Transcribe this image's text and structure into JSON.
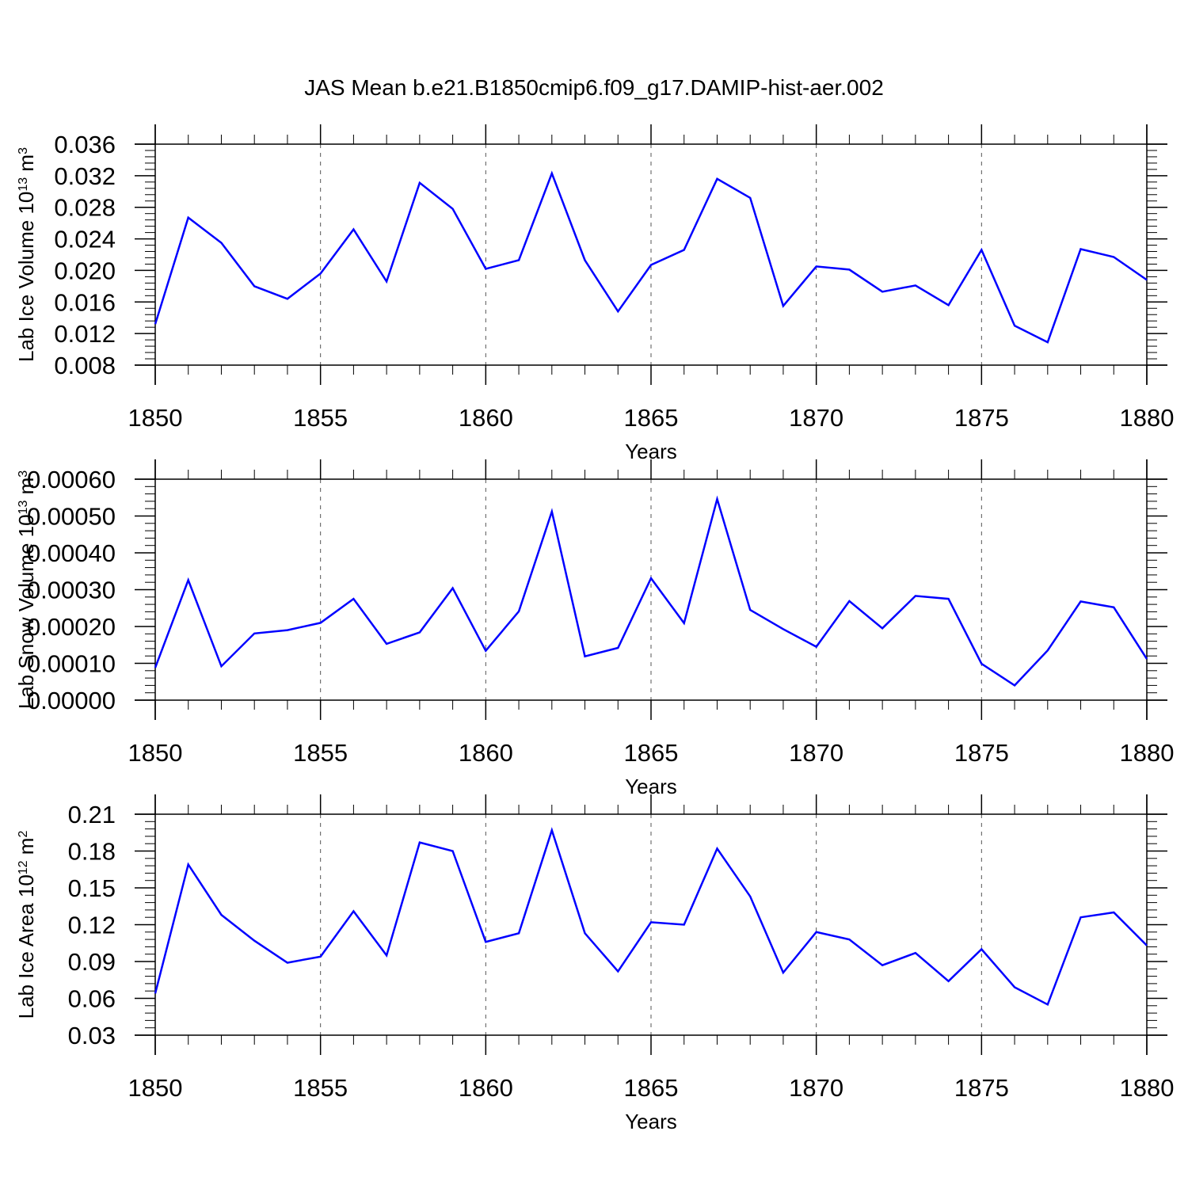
{
  "title": "JAS Mean b.e21.B1850cmip6.f09_g17.DAMIP-hist-aer.002",
  "colors": {
    "line": "#0000ff",
    "axis": "#000000",
    "grid": "#555555"
  },
  "chart_data": [
    {
      "type": "line",
      "ylabel": {
        "main": "Lab Ice Volume 10",
        "exp": "13",
        "unit": " m",
        "unit_exp": "3"
      },
      "xlabel": "Years",
      "xlim": [
        1850,
        1880
      ],
      "ylim": [
        0.008,
        0.036
      ],
      "x_ticks": [
        "1850",
        "1855",
        "1860",
        "1865",
        "1870",
        "1875",
        "1880"
      ],
      "y_ticks": [
        "0.008",
        "0.012",
        "0.016",
        "0.020",
        "0.024",
        "0.028",
        "0.032",
        "0.036"
      ],
      "grid": "vertical dashed at major x ticks",
      "x": [
        1850,
        1851,
        1852,
        1853,
        1854,
        1855,
        1856,
        1857,
        1858,
        1859,
        1860,
        1861,
        1862,
        1863,
        1864,
        1865,
        1866,
        1867,
        1868,
        1869,
        1870,
        1871,
        1872,
        1873,
        1874,
        1875,
        1876,
        1877,
        1878,
        1879,
        1880
      ],
      "values": [
        0.0132,
        0.0267,
        0.0235,
        0.018,
        0.0164,
        0.0196,
        0.0252,
        0.0186,
        0.0311,
        0.0278,
        0.0202,
        0.0213,
        0.0323,
        0.0213,
        0.0148,
        0.0207,
        0.0226,
        0.0316,
        0.0292,
        0.0155,
        0.0205,
        0.0201,
        0.0173,
        0.0181,
        0.0156,
        0.0226,
        0.013,
        0.0109,
        0.0227,
        0.0217,
        0.0188
      ]
    },
    {
      "type": "line",
      "ylabel": {
        "main": "Lab Snow Volume 10",
        "exp": "13",
        "unit": " m",
        "unit_exp": "3"
      },
      "xlabel": "Years",
      "xlim": [
        1850,
        1880
      ],
      "ylim": [
        0.0,
        0.0006
      ],
      "x_ticks": [
        "1850",
        "1855",
        "1860",
        "1865",
        "1870",
        "1875",
        "1880"
      ],
      "y_ticks": [
        "0.00000",
        "0.00010",
        "0.00020",
        "0.00030",
        "0.00040",
        "0.00050",
        "0.00060"
      ],
      "grid": "vertical dashed at major x ticks",
      "x": [
        1850,
        1851,
        1852,
        1853,
        1854,
        1855,
        1856,
        1857,
        1858,
        1859,
        1860,
        1861,
        1862,
        1863,
        1864,
        1865,
        1866,
        1867,
        1868,
        1869,
        1870,
        1871,
        1872,
        1873,
        1874,
        1875,
        1876,
        1877,
        1878,
        1879,
        1880
      ],
      "values": [
        8.8e-05,
        0.000326,
        9.2e-05,
        0.000181,
        0.00019,
        0.00021,
        0.000275,
        0.000153,
        0.000184,
        0.000304,
        0.000134,
        0.000241,
        0.000512,
        0.000119,
        0.000142,
        0.000331,
        0.000209,
        0.000546,
        0.000245,
        0.000193,
        0.000145,
        0.000269,
        0.000195,
        0.000283,
        0.000275,
        9.9e-05,
        4e-05,
        0.000135,
        0.000268,
        0.000252,
        0.000112
      ]
    },
    {
      "type": "line",
      "ylabel": {
        "main": "Lab Ice Area 10",
        "exp": "12",
        "unit": " m",
        "unit_exp": "2"
      },
      "xlabel": "Years",
      "xlim": [
        1850,
        1880
      ],
      "ylim": [
        0.03,
        0.21
      ],
      "x_ticks": [
        "1850",
        "1855",
        "1860",
        "1865",
        "1870",
        "1875",
        "1880"
      ],
      "y_ticks": [
        "0.03",
        "0.06",
        "0.09",
        "0.12",
        "0.15",
        "0.18",
        "0.21"
      ],
      "grid": "vertical dashed at major x ticks",
      "x": [
        1850,
        1851,
        1852,
        1853,
        1854,
        1855,
        1856,
        1857,
        1858,
        1859,
        1860,
        1861,
        1862,
        1863,
        1864,
        1865,
        1866,
        1867,
        1868,
        1869,
        1870,
        1871,
        1872,
        1873,
        1874,
        1875,
        1876,
        1877,
        1878,
        1879,
        1880
      ],
      "values": [
        0.064,
        0.169,
        0.128,
        0.107,
        0.089,
        0.094,
        0.131,
        0.095,
        0.187,
        0.18,
        0.106,
        0.113,
        0.197,
        0.113,
        0.082,
        0.122,
        0.12,
        0.182,
        0.143,
        0.081,
        0.114,
        0.108,
        0.087,
        0.097,
        0.074,
        0.1,
        0.069,
        0.055,
        0.126,
        0.13,
        0.103
      ]
    }
  ]
}
